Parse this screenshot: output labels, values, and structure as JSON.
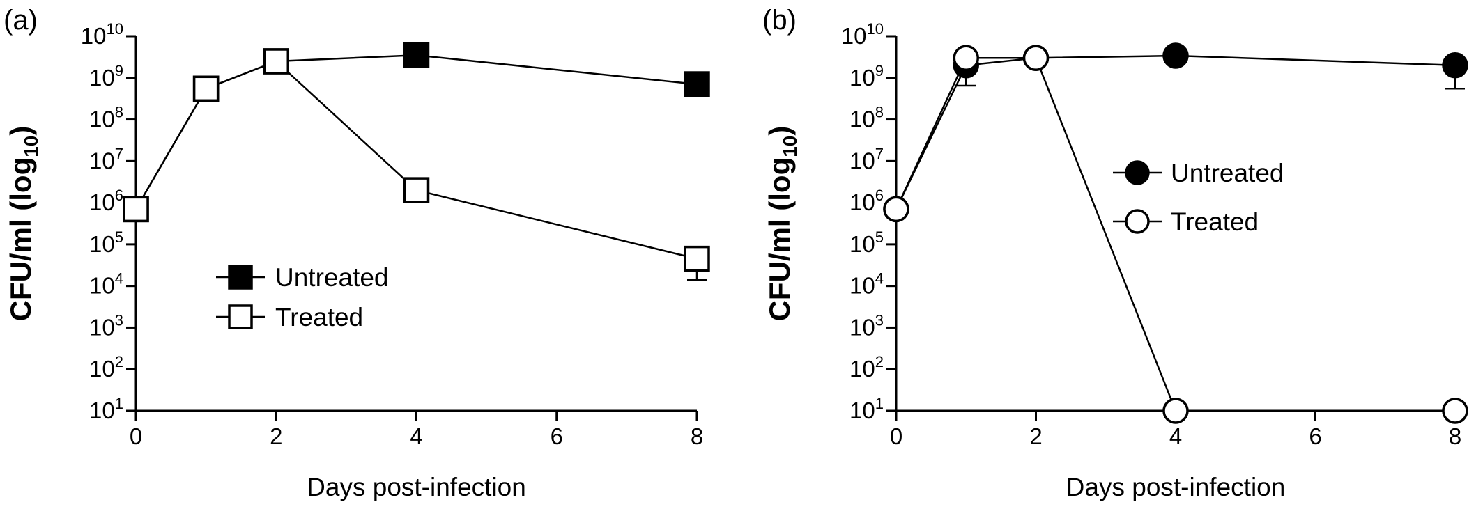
{
  "chart_data": [
    {
      "panel_label": "(a)",
      "type": "line",
      "xlabel": "Days post-infection",
      "ylabel_main": "CFU/ml (log",
      "ylabel_sub": "10",
      "ylabel_close": ")",
      "x_ticks": [
        "0",
        "2",
        "4",
        "6",
        "8"
      ],
      "x_tick_values": [
        0,
        2,
        4,
        6,
        8
      ],
      "xlim": [
        0,
        8
      ],
      "y_scale": "log",
      "ylim": [
        10,
        10000000000
      ],
      "y_ticks": [
        {
          "base": "10",
          "exp": "1"
        },
        {
          "base": "10",
          "exp": "2"
        },
        {
          "base": "10",
          "exp": "3"
        },
        {
          "base": "10",
          "exp": "4"
        },
        {
          "base": "10",
          "exp": "5"
        },
        {
          "base": "10",
          "exp": "6"
        },
        {
          "base": "10",
          "exp": "7"
        },
        {
          "base": "10",
          "exp": "8"
        },
        {
          "base": "10",
          "exp": "9"
        },
        {
          "base": "10",
          "exp": "10"
        }
      ],
      "y_tick_values": [
        1,
        2,
        3,
        4,
        5,
        6,
        7,
        8,
        9,
        10
      ],
      "legend_position": "center",
      "series": [
        {
          "name": "Untreated",
          "marker": "square-filled",
          "x": [
            0,
            1,
            2,
            4,
            8
          ],
          "y": [
            700000,
            550000000,
            2500000000,
            3500000000,
            700000000
          ],
          "error_upper": [
            null,
            null,
            null,
            null,
            null
          ]
        },
        {
          "name": "Treated",
          "marker": "square-open",
          "x": [
            0,
            1,
            2,
            4,
            8
          ],
          "y": [
            700000,
            550000000,
            2500000000,
            2000000,
            45000
          ],
          "error_upper": [
            null,
            null,
            null,
            3800000,
            null
          ],
          "error_lower": [
            null,
            null,
            null,
            null,
            14000
          ]
        }
      ]
    },
    {
      "panel_label": "(b)",
      "type": "line",
      "xlabel": "Days post-infection",
      "ylabel_main": "CFU/ml (log",
      "ylabel_sub": "10",
      "ylabel_close": ")",
      "x_ticks": [
        "0",
        "2",
        "4",
        "6",
        "8"
      ],
      "x_tick_values": [
        0,
        2,
        4,
        6,
        8
      ],
      "xlim": [
        0,
        8
      ],
      "y_scale": "log",
      "ylim": [
        10,
        10000000000
      ],
      "y_ticks": [
        {
          "base": "10",
          "exp": "1"
        },
        {
          "base": "10",
          "exp": "2"
        },
        {
          "base": "10",
          "exp": "3"
        },
        {
          "base": "10",
          "exp": "4"
        },
        {
          "base": "10",
          "exp": "5"
        },
        {
          "base": "10",
          "exp": "6"
        },
        {
          "base": "10",
          "exp": "7"
        },
        {
          "base": "10",
          "exp": "8"
        },
        {
          "base": "10",
          "exp": "9"
        },
        {
          "base": "10",
          "exp": "10"
        }
      ],
      "y_tick_values": [
        1,
        2,
        3,
        4,
        5,
        6,
        7,
        8,
        9,
        10
      ],
      "legend_position": "upper-center",
      "series": [
        {
          "name": "Untreated",
          "marker": "circle-filled",
          "x": [
            0,
            1,
            2,
            4,
            8
          ],
          "y": [
            700000,
            2000000000,
            3000000000,
            3400000000,
            2000000000
          ],
          "error_lower": [
            null,
            650000000,
            null,
            null,
            550000000
          ]
        },
        {
          "name": "Treated",
          "marker": "circle-open",
          "x": [
            0,
            1,
            2,
            4,
            8
          ],
          "y": [
            700000,
            3000000000,
            3000000000,
            10,
            10
          ],
          "error_lower": [
            null,
            null,
            null,
            null,
            null
          ]
        }
      ]
    }
  ]
}
